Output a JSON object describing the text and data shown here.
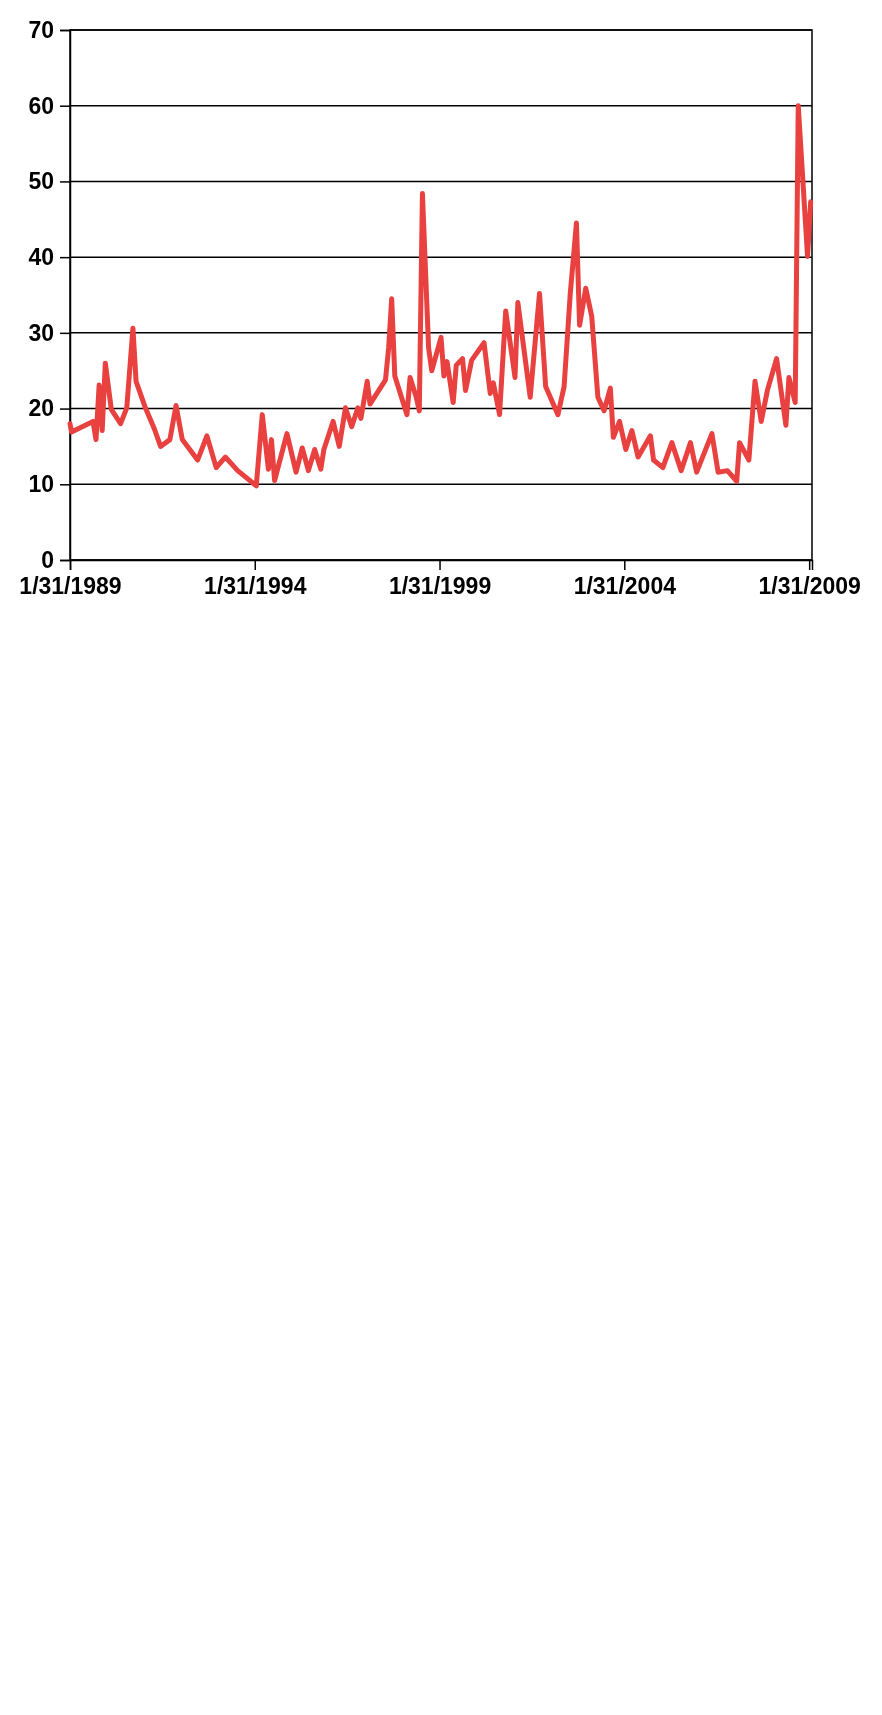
{
  "chart_data": {
    "type": "line",
    "x": [
      "1989-01-31",
      "1989-02",
      "1989-09",
      "1989-10",
      "1989-11",
      "1989-12",
      "1990-01",
      "1990-03",
      "1990-06",
      "1990-08",
      "1990-10",
      "1990-11",
      "1991-02",
      "1991-05",
      "1991-07",
      "1991-10",
      "1991-12",
      "1992-02",
      "1992-07",
      "1992-10",
      "1993-01",
      "1993-04",
      "1993-08",
      "1994-02",
      "1994-04",
      "1994-06",
      "1994-07",
      "1994-08",
      "1994-12",
      "1995-03",
      "1995-05",
      "1995-07",
      "1995-09",
      "1995-11",
      "1995-12",
      "1996-03",
      "1996-05",
      "1996-07",
      "1996-09",
      "1996-11",
      "1996-12",
      "1997-02",
      "1997-03",
      "1997-08",
      "1997-09",
      "1997-10",
      "1997-11",
      "1998-03",
      "1998-04",
      "1998-06",
      "1998-07",
      "1998-08",
      "1998-10",
      "1998-11",
      "1999-02",
      "1999-03",
      "1999-04",
      "1999-06",
      "1999-07",
      "1999-09",
      "1999-10",
      "1999-12",
      "2000-04",
      "2000-06",
      "2000-07",
      "2000-09",
      "2000-11",
      "2001-02",
      "2001-03",
      "2001-07",
      "2001-10",
      "2001-12",
      "2002-04",
      "2002-06",
      "2002-08",
      "2002-10",
      "2002-11",
      "2003-01",
      "2003-03",
      "2003-05",
      "2003-07",
      "2003-09",
      "2003-10",
      "2003-12",
      "2004-02",
      "2004-04",
      "2004-06",
      "2004-10",
      "2004-11",
      "2005-02",
      "2005-05",
      "2005-08",
      "2005-11",
      "2006-01",
      "2006-06",
      "2006-08",
      "2006-11",
      "2007-02",
      "2007-03",
      "2007-06",
      "2007-08",
      "2007-10",
      "2007-12",
      "2008-03",
      "2008-06",
      "2008-07",
      "2008-09",
      "2008-10",
      "2009-01",
      "2009-02"
    ],
    "values": [
      18.0,
      16.9,
      18.3,
      15.9,
      23.1,
      17.1,
      26.0,
      19.9,
      18.0,
      20.1,
      30.6,
      23.6,
      20.1,
      17.3,
      15.0,
      15.9,
      20.4,
      15.9,
      13.2,
      16.4,
      12.2,
      13.6,
      11.8,
      9.8,
      19.2,
      12.0,
      15.9,
      10.5,
      16.7,
      11.6,
      14.8,
      11.8,
      14.6,
      12.0,
      14.6,
      18.3,
      15.0,
      20.1,
      17.6,
      20.1,
      18.7,
      23.6,
      20.6,
      23.8,
      28.0,
      34.5,
      24.3,
      19.2,
      24.1,
      21.5,
      19.7,
      48.4,
      28.0,
      25.0,
      29.4,
      24.3,
      26.2,
      20.8,
      25.7,
      26.6,
      22.4,
      26.4,
      28.7,
      22.0,
      23.4,
      19.2,
      32.9,
      24.1,
      34.0,
      21.5,
      35.2,
      22.9,
      19.2,
      22.9,
      35.2,
      44.5,
      31.0,
      35.9,
      32.2,
      21.5,
      19.7,
      22.7,
      16.2,
      18.3,
      14.6,
      17.1,
      13.6,
      16.4,
      13.2,
      12.2,
      15.5,
      11.8,
      15.5,
      11.6,
      16.7,
      11.6,
      11.8,
      10.4,
      15.5,
      13.2,
      23.6,
      18.3,
      22.4,
      26.6,
      17.8,
      24.1,
      20.8,
      60.0,
      40.1,
      47.3
    ],
    "color": "#e8413f",
    "line_style": "solid",
    "marker": "none",
    "xlim": [
      "1989-01-31",
      "2009-02-28"
    ],
    "xticks": [
      {
        "value": "1989-01-31",
        "label": "1/31/1989"
      },
      {
        "value": "1994-01-31",
        "label": "1/31/1994"
      },
      {
        "value": "1999-01-31",
        "label": "1/31/1999"
      },
      {
        "value": "2004-01-31",
        "label": "1/31/2004"
      },
      {
        "value": "2009-01-31",
        "label": "1/31/2009"
      }
    ],
    "ylim": [
      0,
      70
    ],
    "yticks": [
      0,
      10,
      20,
      30,
      40,
      50,
      60,
      70
    ],
    "grid": "y"
  }
}
